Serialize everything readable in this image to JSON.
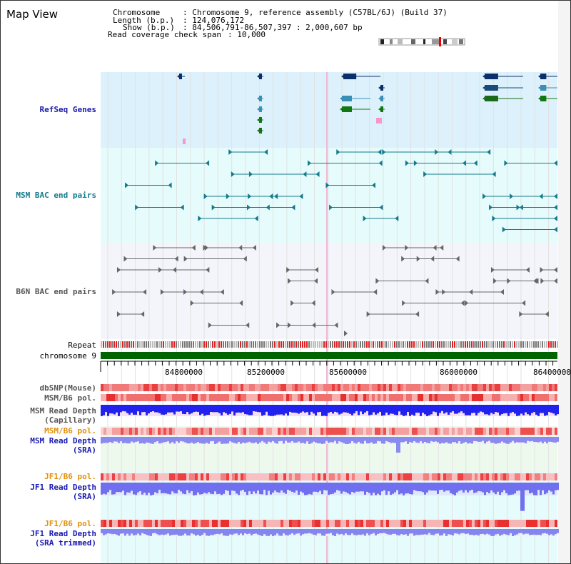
{
  "title": "Map View",
  "info": {
    "chromosome_key": "Chromosome",
    "chromosome_val": ": Chromosome 9, reference assembly (C57BL/6J) (Build 37)",
    "length_key": "Length (b.p.)",
    "length_val": ": 124,076,172",
    "show_key": "Show (b.p.)",
    "show_val": ": 84,506,791-86,507,397 : 2,000,607 bp",
    "coverage_key": "Read coverage check span",
    "coverage_val": ": 10,000"
  },
  "tracks": {
    "refseq": "RefSeq Genes",
    "msm_bac": "MSM BAC end pairs",
    "b6n_bac": "B6N BAC end pairs",
    "repeat": "Repeat",
    "chromosome": "chromosome 9",
    "dbsnp": "dbSNP(Mouse)",
    "msm_b6_pol": "MSM/B6 pol.",
    "msm_depth_cap_1": "MSM Read Depth",
    "msm_depth_cap_2": "(Capillary)",
    "msm_b6_pol_sra": "MSM/B6 pol.",
    "msm_depth_sra_1": "MSM Read Depth",
    "msm_depth_sra_2": "(SRA)",
    "jf1_b6_pol": "JF1/B6 pol.",
    "jf1_depth_sra_1": "JF1 Read Depth",
    "jf1_depth_sra_2": "(SRA)",
    "jf1_b6_pol_trim": "JF1/B6 pol.",
    "jf1_depth_trim_1": "JF1 Read Depth",
    "jf1_depth_trim_2": "(SRA trimmed)"
  },
  "axis": {
    "ticks": [
      "84800000",
      "85200000",
      "85600000",
      "86000000",
      "86400000"
    ]
  },
  "colors": {
    "refseq_bg": "#dcf1fb",
    "msm_bg": "#e6fbfb",
    "b6n_bg": "#f4f4fb",
    "label_blue": "#1a1ab0",
    "label_teal": "#147a8a",
    "label_gray": "#555555",
    "label_orange": "#e0900a",
    "chromosome_green": "#006400",
    "depth_blue": "#2222ee",
    "depth_light": "#7777f2",
    "pol_red": "#f03030"
  }
}
